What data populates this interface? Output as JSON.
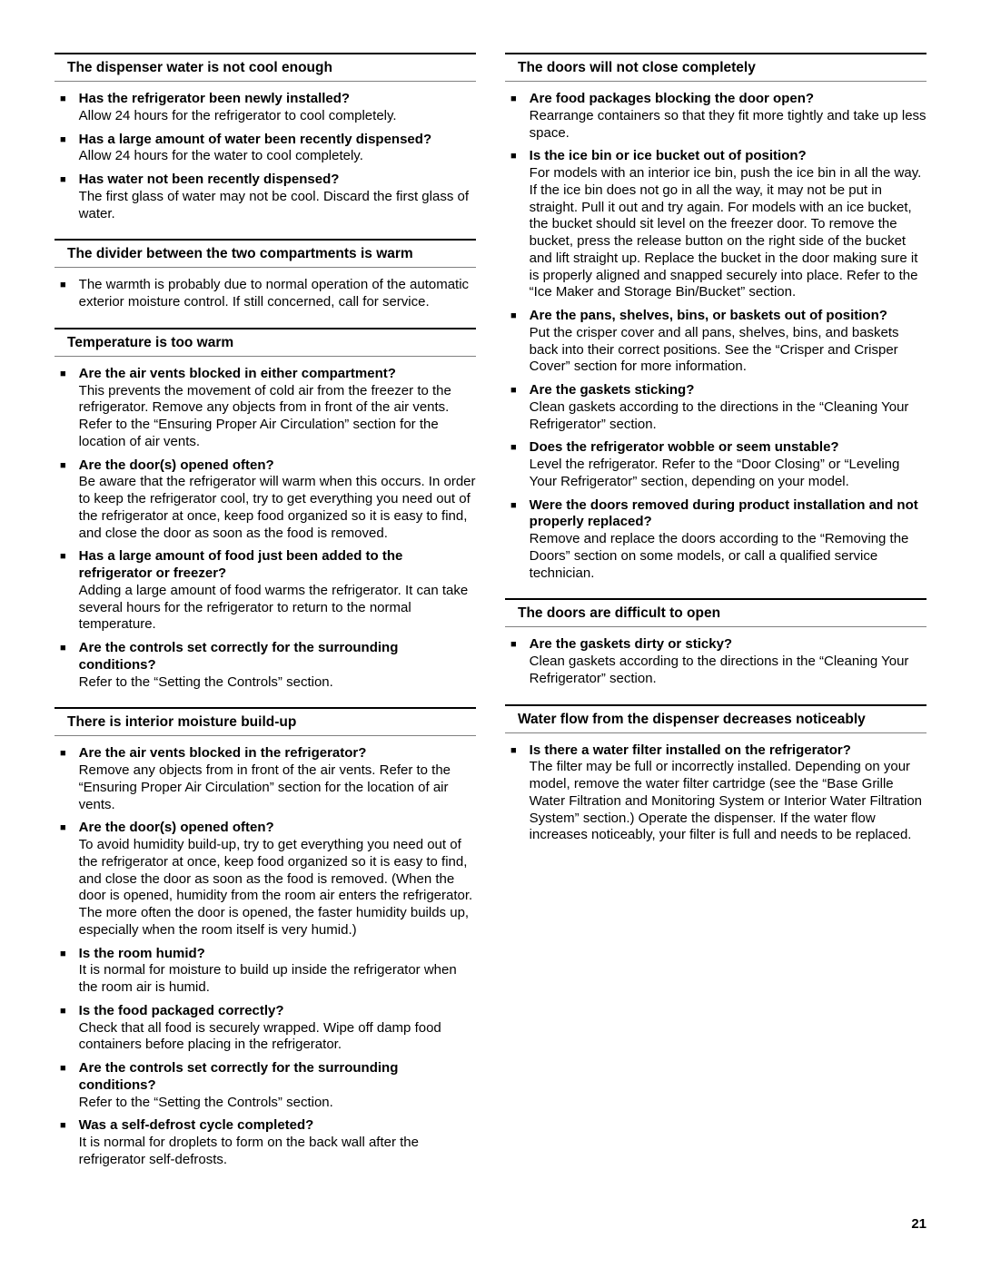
{
  "pageNumber": "21",
  "leftColumn": [
    {
      "heading": "The dispenser water is not cool enough",
      "items": [
        {
          "q": "Has the refrigerator been newly installed?",
          "a": "Allow 24 hours for the refrigerator to cool completely."
        },
        {
          "q": "Has a large amount of water been recently dispensed?",
          "a": "Allow 24 hours for the water to cool completely."
        },
        {
          "q": "Has water not been recently dispensed?",
          "a": "The first glass of water may not be cool. Discard the first glass of water."
        }
      ]
    },
    {
      "heading": "The divider between the two compartments is warm",
      "items": [
        {
          "q": "",
          "a": "The warmth is probably due to normal operation of the automatic exterior moisture control. If still concerned, call for service."
        }
      ]
    },
    {
      "heading": "Temperature is too warm",
      "items": [
        {
          "q": "Are the air vents blocked in either compartment?",
          "a": "This prevents the movement of cold air from the freezer to the refrigerator. Remove any objects from in front of the air vents. Refer to the “Ensuring Proper Air Circulation” section for the location of air vents."
        },
        {
          "q": "Are the door(s) opened often?",
          "a": "Be aware that the refrigerator will warm when this occurs. In order to keep the refrigerator cool, try to get everything you need out of the refrigerator at once, keep food organized so it is easy to find, and close the door as soon as the food is removed."
        },
        {
          "q": "Has a large amount of food just been added to the refrigerator or freezer?",
          "a": "Adding a large amount of food warms the refrigerator. It can take several hours for the refrigerator to return to the normal temperature."
        },
        {
          "q": "Are the controls set correctly for the surrounding conditions?",
          "a": "Refer to the “Setting the Controls” section."
        }
      ]
    },
    {
      "heading": "There is interior moisture build-up",
      "items": [
        {
          "q": "Are the air vents blocked in the refrigerator?",
          "a": "Remove any objects from in front of the air vents. Refer to the “Ensuring Proper Air Circulation” section for the location of air vents."
        },
        {
          "q": "Are the door(s) opened often?",
          "a": "To avoid humidity build-up, try to get everything you need out of the refrigerator at once, keep food organized so it is easy to find, and close the door as soon as the food is removed. (When the door is opened, humidity from the room air enters the refrigerator. The more often the door is opened, the faster humidity builds up, especially when the room itself is very humid.)"
        },
        {
          "q": "Is the room humid?",
          "a": "It is normal for moisture to build up inside the refrigerator when the room air is humid."
        },
        {
          "q": "Is the food packaged correctly?",
          "a": "Check that all food is securely wrapped. Wipe off damp food containers before placing in the refrigerator."
        },
        {
          "q": "Are the controls set correctly for the surrounding conditions?",
          "a": "Refer to the “Setting the Controls” section."
        },
        {
          "q": "Was a self-defrost cycle completed?",
          "a": "It is normal for droplets to form on the back wall after the refrigerator self-defrosts."
        }
      ]
    }
  ],
  "rightColumn": [
    {
      "heading": "The doors will not close completely",
      "items": [
        {
          "q": "Are food packages blocking the door open?",
          "a": "Rearrange containers so that they fit more tightly and take up less space."
        },
        {
          "q": "Is the ice bin or ice bucket out of position?",
          "a": "For models with an interior ice bin, push the ice bin in all the way. If the ice bin does not go in all the way, it may not be put in straight. Pull it out and try again. For models with an ice bucket, the bucket should sit level on the freezer door. To remove the bucket, press the release button on the right side of the bucket and lift straight up. Replace the bucket in the door making sure it is properly aligned and snapped securely into place. Refer to the “Ice Maker and Storage Bin/Bucket” section."
        },
        {
          "q": "Are the pans, shelves, bins, or baskets out of position?",
          "a": "Put the crisper cover and all pans, shelves, bins, and baskets back into their correct positions. See the “Crisper and Crisper Cover” section for more information."
        },
        {
          "q": "Are the gaskets sticking?",
          "a": "Clean gaskets according to the directions in the “Cleaning Your Refrigerator” section."
        },
        {
          "q": "Does the refrigerator wobble or seem unstable?",
          "a": "Level the refrigerator. Refer to the “Door Closing” or “Leveling Your Refrigerator” section, depending on your model."
        },
        {
          "q": "Were the doors removed during product installation and not properly replaced?",
          "a": "Remove and replace the doors according to the “Removing the Doors” section on some models, or call a qualified service technician."
        }
      ]
    },
    {
      "heading": "The doors are difficult to open",
      "items": [
        {
          "q": "Are the gaskets dirty or sticky?",
          "a": "Clean gaskets according to the directions in the “Cleaning Your Refrigerator” section."
        }
      ]
    },
    {
      "heading": "Water flow from the dispenser decreases noticeably",
      "items": [
        {
          "q": "Is there a water filter installed on the refrigerator?",
          "a": "The filter may be full or incorrectly installed. Depending on your model, remove the water filter cartridge (see the “Base Grille Water Filtration and Monitoring System or Interior Water Filtration System” section.) Operate the dispenser. If the water flow increases noticeably, your filter is full and needs to be replaced."
        }
      ]
    }
  ]
}
